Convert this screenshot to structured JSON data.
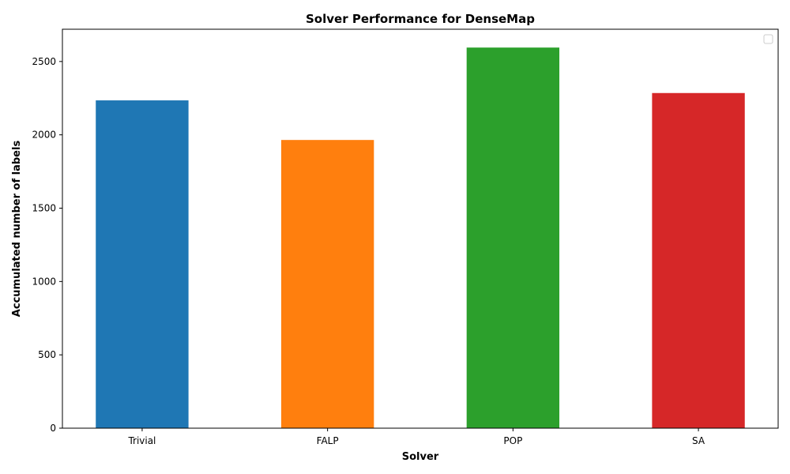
{
  "chart_data": {
    "type": "bar",
    "title": "Solver Performance for DenseMap",
    "xlabel": "Solver",
    "ylabel": "Accumulated number of labels",
    "categories": [
      "Trivial",
      "FALP",
      "POP",
      "SA"
    ],
    "values": [
      2235,
      1965,
      2595,
      2285
    ],
    "colors": [
      "#1f77b4",
      "#ff7f0e",
      "#2ca02c",
      "#d62728"
    ],
    "ylim": [
      0,
      2720
    ],
    "yticks": [
      0,
      500,
      1000,
      1500,
      2000,
      2500
    ],
    "grid": false,
    "legend": {
      "placement": "top-right",
      "entries": []
    }
  }
}
